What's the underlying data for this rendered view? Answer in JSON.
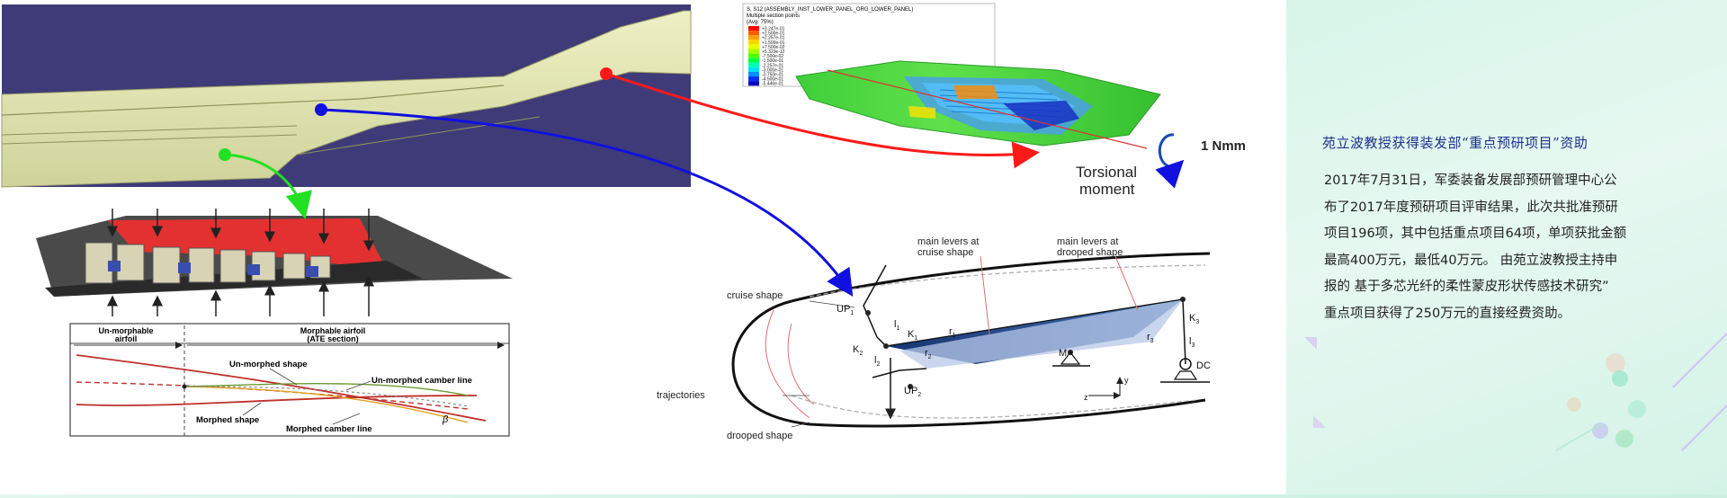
{
  "article": {
    "title": "苑立波教授获得装发部“重点预研项目”资助",
    "lines": [
      " 2017年7月31日，军委装备发展部预研管理中心公",
      "布了2017年度预研项目评审结果，此次共批准预研",
      "项目196项，其中包括重点项目64项，单项获批金额",
      "最高400万元，最低40万元。 由苑立波教授主持申",
      "报的 基于多芯光纤的柔性蒙皮形状传感技术研究”",
      "重点项目获得了250万元的直接经费资助。"
    ]
  },
  "fem": {
    "header_line1": "S, S12 (ASSEMBLY_INST_LOWER_PANEL_ORG_LOWER_PANEL)",
    "header_line2": "Multiple section points",
    "header_line3": "(Avg: 75%)",
    "legend_values": [
      "+3.247e-01",
      "+2.500e-01",
      "+2.257e-01",
      "+1.500e-01",
      "+7.500e-02",
      "+5.323e-12",
      "-7.500e-02",
      "-1.500e-01",
      "-2.257e-01",
      "-3.000e-01",
      "-3.750e-01",
      "-4.500e-01",
      "-5.446e-01"
    ],
    "legend_colors": [
      "#ff0000",
      "#ff5a00",
      "#ffa000",
      "#ffd500",
      "#e6ff00",
      "#a6ff00",
      "#55ff00",
      "#00ff40",
      "#00ffb0",
      "#00e0ff",
      "#0090ff",
      "#0030ff",
      "#0000c8"
    ],
    "moment_label": "1 Nmm",
    "torsional_line1": "Torsional",
    "torsional_line2": "moment"
  },
  "airfoil": {
    "unmorphable_line1": "Un-morphable",
    "unmorphable_line2": "airfoil",
    "morphable_line1": "Morphable airfoil",
    "morphable_line2": "(ATE section)",
    "unmorphed_shape": "Un-morphed shape",
    "unmorphed_camber": "Un-morphed camber line",
    "morphed_shape": "Morphed shape",
    "morphed_camber": "Morphed camber line",
    "beta": "β"
  },
  "mechanism": {
    "cruise_levers_line1": "main levers at",
    "cruise_levers_line2": "cruise shape",
    "drooped_levers_line1": "main levers at",
    "drooped_levers_line2": "drooped shape",
    "cruise_shape": "cruise shape",
    "trajectories": "trajectories",
    "drooped_shape": "drooped shape",
    "up1": "UP",
    "up1_sub": "1",
    "up2": "UP",
    "up2_sub": "2",
    "k1": "K",
    "k1_sub": "1",
    "k2": "K",
    "k2_sub": "2",
    "k3": "K",
    "k3_sub": "3",
    "l1": "l",
    "l1_sub": "1",
    "l2": "l",
    "l2_sub": "2",
    "l3": "l",
    "l3_sub": "3",
    "r1": "r",
    "r1_sub": "1",
    "r2": "r",
    "r2_sub": "2",
    "r3": "r",
    "r3_sub": "3",
    "m": "M",
    "dc": "DC",
    "z": "z",
    "y": "y"
  },
  "colors": {
    "wing_bg": "#3f3b78",
    "wing_surface": "#e6e8b0",
    "arrow_red": "#ff1a1a",
    "arrow_blue": "#1010e0",
    "arrow_green": "#22e022",
    "fem_green": "#3fcf3a",
    "title_blue": "#1d2f8c"
  }
}
